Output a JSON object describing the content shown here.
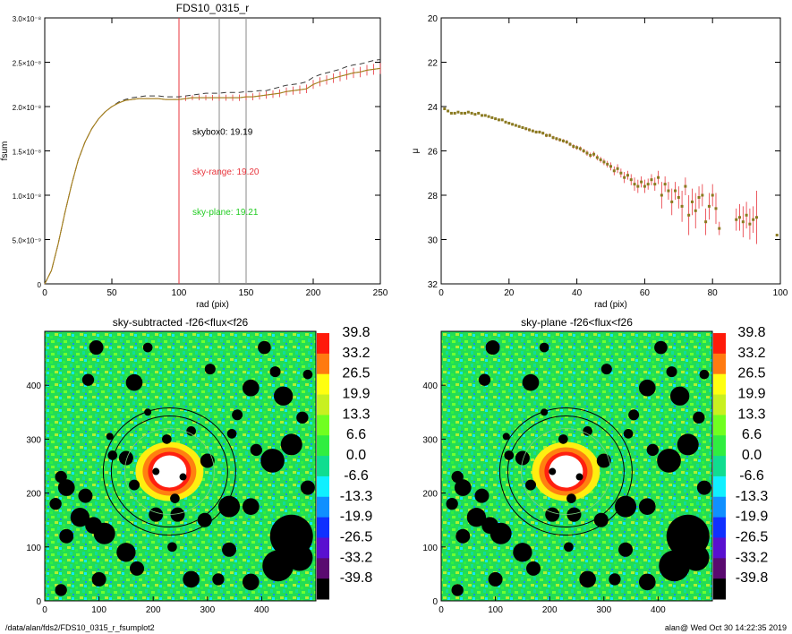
{
  "footer": {
    "path": "/data/alan/fds2/FDS10_0315_r_fsumplot2",
    "user_date": "alan@  Wed Oct 30 14:22:35 2019"
  },
  "chart_data": [
    {
      "id": "fsum",
      "type": "line",
      "title": "FDS10_0315_r",
      "xlabel": "rad (pix)",
      "ylabel": "fsum",
      "xlim": [
        0,
        250
      ],
      "ylim": [
        0,
        3e-08
      ],
      "x_ticks": [
        0,
        50,
        100,
        150,
        200,
        250
      ],
      "x_tick_labels": [
        "0",
        "50",
        "100",
        "150",
        "200",
        "250"
      ],
      "y_ticks": [
        0,
        5e-09,
        1e-08,
        1.5e-08,
        2e-08,
        2.5e-08,
        3e-08
      ],
      "y_tick_labels": [
        "0",
        "5.0×10⁻⁹",
        "1.0×10⁻⁸",
        "1.5×10⁻⁸",
        "2.0×10⁻⁸",
        "2.5×10⁻⁸",
        "3.0×10⁻⁸"
      ],
      "vlines": [
        {
          "x": 100,
          "color": "#e8343c"
        },
        {
          "x": 130,
          "color": "#888888"
        },
        {
          "x": 150,
          "color": "#888888"
        }
      ],
      "series": [
        {
          "color": "#3a3a3a",
          "dash": true,
          "x": [
            0,
            5,
            10,
            15,
            20,
            25,
            30,
            35,
            40,
            45,
            50,
            55,
            60,
            65,
            70,
            75,
            80,
            85,
            90,
            95,
            100,
            105,
            110,
            115,
            120,
            125,
            130,
            135,
            140,
            145,
            150,
            155,
            160,
            165,
            170,
            175,
            180,
            185,
            190,
            195,
            200,
            205,
            210,
            215,
            220,
            225,
            230,
            235,
            240,
            245,
            250
          ],
          "y": [
            0,
            1.5e-09,
            4.5e-09,
            8e-09,
            1.12e-08,
            1.4e-08,
            1.6e-08,
            1.75e-08,
            1.86e-08,
            1.94e-08,
            2e-08,
            2.05e-08,
            2.08e-08,
            2.1e-08,
            2.11e-08,
            2.12e-08,
            2.12e-08,
            2.12e-08,
            2.11e-08,
            2.11e-08,
            2.11e-08,
            2.12e-08,
            2.13e-08,
            2.14e-08,
            2.15e-08,
            2.15e-08,
            2.15e-08,
            2.16e-08,
            2.16e-08,
            2.16e-08,
            2.17e-08,
            2.17e-08,
            2.18e-08,
            2.18e-08,
            2.2e-08,
            2.22e-08,
            2.24e-08,
            2.25e-08,
            2.26e-08,
            2.28e-08,
            2.33e-08,
            2.36e-08,
            2.38e-08,
            2.4e-08,
            2.42e-08,
            2.45e-08,
            2.47e-08,
            2.48e-08,
            2.5e-08,
            2.52e-08,
            2.53e-08
          ]
        },
        {
          "color": "#e8343c",
          "errorbars": true,
          "x": [
            0,
            5,
            10,
            15,
            20,
            25,
            30,
            35,
            40,
            45,
            50,
            55,
            60,
            65,
            70,
            75,
            80,
            85,
            90,
            95,
            100,
            105,
            110,
            115,
            120,
            125,
            130,
            135,
            140,
            145,
            150,
            155,
            160,
            165,
            170,
            175,
            180,
            185,
            190,
            195,
            200,
            205,
            210,
            215,
            220,
            225,
            230,
            235,
            240,
            245,
            250
          ],
          "y": [
            0,
            1.5e-09,
            4.5e-09,
            8e-09,
            1.12e-08,
            1.4e-08,
            1.6e-08,
            1.75e-08,
            1.86e-08,
            1.94e-08,
            2e-08,
            2.04e-08,
            2.07e-08,
            2.08e-08,
            2.09e-08,
            2.09e-08,
            2.09e-08,
            2.09e-08,
            2.08e-08,
            2.08e-08,
            2.08e-08,
            2.09e-08,
            2.1e-08,
            2.1e-08,
            2.1e-08,
            2.1e-08,
            2.1e-08,
            2.1e-08,
            2.1e-08,
            2.1e-08,
            2.11e-08,
            2.11e-08,
            2.12e-08,
            2.13e-08,
            2.14e-08,
            2.15e-08,
            2.17e-08,
            2.18e-08,
            2.19e-08,
            2.2e-08,
            2.25e-08,
            2.28e-08,
            2.3e-08,
            2.32e-08,
            2.34e-08,
            2.36e-08,
            2.38e-08,
            2.39e-08,
            2.41e-08,
            2.42e-08,
            2.43e-08
          ]
        },
        {
          "color": "#9a8a1a",
          "x": [
            0,
            5,
            10,
            15,
            20,
            25,
            30,
            35,
            40,
            45,
            50,
            55,
            60,
            65,
            70,
            75,
            80,
            85,
            90,
            95,
            100,
            105,
            110,
            115,
            120,
            125,
            130,
            135,
            140,
            145,
            150,
            155,
            160,
            165,
            170,
            175,
            180,
            185,
            190,
            195,
            200,
            205,
            210,
            215,
            220,
            225,
            230,
            235,
            240,
            245,
            250
          ],
          "y": [
            0,
            1.5e-09,
            4.5e-09,
            8e-09,
            1.12e-08,
            1.4e-08,
            1.6e-08,
            1.75e-08,
            1.86e-08,
            1.94e-08,
            2e-08,
            2.04e-08,
            2.07e-08,
            2.08e-08,
            2.09e-08,
            2.09e-08,
            2.09e-08,
            2.09e-08,
            2.08e-08,
            2.08e-08,
            2.08e-08,
            2.09e-08,
            2.1e-08,
            2.1e-08,
            2.1e-08,
            2.1e-08,
            2.1e-08,
            2.1e-08,
            2.1e-08,
            2.1e-08,
            2.11e-08,
            2.11e-08,
            2.12e-08,
            2.13e-08,
            2.14e-08,
            2.15e-08,
            2.17e-08,
            2.18e-08,
            2.19e-08,
            2.2e-08,
            2.25e-08,
            2.28e-08,
            2.3e-08,
            2.32e-08,
            2.34e-08,
            2.36e-08,
            2.38e-08,
            2.39e-08,
            2.41e-08,
            2.42e-08,
            2.43e-08
          ]
        }
      ],
      "annotations": [
        {
          "text": "skybox0: 19.19",
          "x": 110,
          "y": 1.68e-08,
          "color": "#000000"
        },
        {
          "text": "sky-range: 19.20",
          "x": 110,
          "y": 1.23e-08,
          "color": "#e8343c"
        },
        {
          "text": "sky-plane: 19.21",
          "x": 110,
          "y": 7.8e-09,
          "color": "#22cc22"
        }
      ]
    },
    {
      "id": "mu",
      "type": "scatter",
      "title": "",
      "xlabel": "rad (pix)",
      "ylabel": "μ",
      "xlim": [
        0,
        100
      ],
      "ylim": [
        32,
        20
      ],
      "x_ticks": [
        0,
        20,
        40,
        60,
        80,
        100
      ],
      "x_tick_labels": [
        "0",
        "20",
        "40",
        "60",
        "80",
        "100"
      ],
      "y_ticks": [
        20,
        22,
        24,
        26,
        28,
        30,
        32
      ],
      "y_tick_labels": [
        "20",
        "22",
        "24",
        "26",
        "28",
        "30",
        "32"
      ],
      "color": "#8a7a20",
      "errcolor": "#e8343c",
      "points": [
        [
          1,
          24.1,
          0.05
        ],
        [
          2,
          24.2,
          0.05
        ],
        [
          3,
          24.3,
          0.05
        ],
        [
          4,
          24.3,
          0.05
        ],
        [
          5,
          24.25,
          0.05
        ],
        [
          6,
          24.3,
          0.05
        ],
        [
          7,
          24.3,
          0.05
        ],
        [
          8,
          24.25,
          0.05
        ],
        [
          9,
          24.3,
          0.05
        ],
        [
          10,
          24.35,
          0.05
        ],
        [
          11,
          24.3,
          0.05
        ],
        [
          12,
          24.4,
          0.05
        ],
        [
          13,
          24.4,
          0.05
        ],
        [
          14,
          24.45,
          0.05
        ],
        [
          15,
          24.5,
          0.05
        ],
        [
          16,
          24.55,
          0.05
        ],
        [
          17,
          24.6,
          0.06
        ],
        [
          18,
          24.6,
          0.06
        ],
        [
          19,
          24.7,
          0.06
        ],
        [
          20,
          24.75,
          0.06
        ],
        [
          21,
          24.8,
          0.06
        ],
        [
          22,
          24.85,
          0.06
        ],
        [
          23,
          24.9,
          0.06
        ],
        [
          24,
          24.95,
          0.06
        ],
        [
          25,
          25.0,
          0.07
        ],
        [
          26,
          25.05,
          0.07
        ],
        [
          27,
          25.1,
          0.07
        ],
        [
          28,
          25.15,
          0.07
        ],
        [
          29,
          25.15,
          0.07
        ],
        [
          30,
          25.2,
          0.07
        ],
        [
          31,
          25.3,
          0.08
        ],
        [
          32,
          25.3,
          0.08
        ],
        [
          33,
          25.4,
          0.08
        ],
        [
          34,
          25.45,
          0.08
        ],
        [
          35,
          25.5,
          0.08
        ],
        [
          36,
          25.55,
          0.08
        ],
        [
          37,
          25.6,
          0.09
        ],
        [
          38,
          25.7,
          0.09
        ],
        [
          39,
          25.8,
          0.1
        ],
        [
          40,
          25.85,
          0.1
        ],
        [
          41,
          25.9,
          0.1
        ],
        [
          42,
          26.0,
          0.1
        ],
        [
          43,
          26.1,
          0.12
        ],
        [
          44,
          26.2,
          0.12
        ],
        [
          45,
          26.15,
          0.12
        ],
        [
          46,
          26.3,
          0.13
        ],
        [
          47,
          26.4,
          0.13
        ],
        [
          48,
          26.5,
          0.14
        ],
        [
          49,
          26.6,
          0.15
        ],
        [
          50,
          26.7,
          0.18
        ],
        [
          51,
          26.9,
          0.2
        ],
        [
          52,
          26.8,
          0.2
        ],
        [
          53,
          27.0,
          0.2
        ],
        [
          54,
          27.2,
          0.25
        ],
        [
          55,
          27.1,
          0.2
        ],
        [
          56,
          27.3,
          0.25
        ],
        [
          57,
          27.5,
          0.3
        ],
        [
          58,
          27.6,
          0.3
        ],
        [
          59,
          27.4,
          0.25
        ],
        [
          60,
          27.6,
          0.3
        ],
        [
          61,
          27.5,
          0.25
        ],
        [
          62,
          27.3,
          0.25
        ],
        [
          63,
          27.5,
          0.3
        ],
        [
          64,
          27.2,
          0.3
        ],
        [
          65,
          28.0,
          0.6
        ],
        [
          66,
          27.5,
          0.35
        ],
        [
          67,
          27.8,
          0.4
        ],
        [
          68,
          28.3,
          0.6
        ],
        [
          69,
          27.8,
          0.4
        ],
        [
          70,
          28.1,
          0.5
        ],
        [
          71,
          28.5,
          0.7
        ],
        [
          72,
          27.6,
          0.4
        ],
        [
          73,
          28.9,
          0.9
        ],
        [
          74,
          28.3,
          0.6
        ],
        [
          75,
          28.7,
          0.8
        ],
        [
          76,
          28.1,
          0.5
        ],
        [
          77,
          28.0,
          0.5
        ],
        [
          78,
          29.2,
          0.6
        ],
        [
          79,
          28.5,
          0.6
        ],
        [
          80,
          28.0,
          0.5
        ],
        [
          81,
          28.6,
          0.7
        ],
        [
          82,
          29.5,
          0.3
        ],
        [
          87,
          29.1,
          0.5
        ],
        [
          88,
          29.0,
          0.6
        ],
        [
          89,
          29.2,
          0.7
        ],
        [
          90,
          28.9,
          0.6
        ],
        [
          91,
          29.3,
          0.7
        ],
        [
          92,
          29.1,
          0.6
        ],
        [
          93,
          29.0,
          1.2
        ],
        [
          99,
          29.8,
          0.05
        ]
      ]
    },
    {
      "id": "sky-subtracted",
      "type": "heatmap",
      "title": "sky-subtracted -f26<flux<f26",
      "xlim": [
        0,
        500
      ],
      "ylim": [
        0,
        500
      ],
      "x_ticks": [
        0,
        100,
        200,
        300,
        400
      ],
      "x_tick_labels": [
        "0",
        "100",
        "200",
        "300",
        "400"
      ],
      "y_ticks": [
        0,
        100,
        200,
        300,
        400
      ],
      "y_tick_labels": [
        "0",
        "100",
        "200",
        "300",
        "400"
      ],
      "colorbar": {
        "labels": [
          "39.8",
          "33.2",
          "26.5",
          "19.9",
          "13.3",
          "6.6",
          "0.0",
          "-6.6",
          "-13.3",
          "-19.9",
          "-26.5",
          "-33.2",
          "-39.8"
        ],
        "colors": [
          "#ff1a0a",
          "#ff7a10",
          "#ffff10",
          "#c8f020",
          "#70ff20",
          "#30ee40",
          "#10dd90",
          "#10f0ff",
          "#1090ff",
          "#1030ff",
          "#5a10d0",
          "#5a0a70",
          "#000000"
        ]
      }
    },
    {
      "id": "sky-plane",
      "type": "heatmap",
      "title": "sky-plane -f26<flux<f26",
      "xlim": [
        0,
        500
      ],
      "ylim": [
        0,
        500
      ],
      "x_ticks": [
        0,
        100,
        200,
        300,
        400
      ],
      "x_tick_labels": [
        "0",
        "100",
        "200",
        "300",
        "400"
      ],
      "y_ticks": [
        0,
        100,
        200,
        300,
        400
      ],
      "y_tick_labels": [
        "0",
        "100",
        "200",
        "300",
        "400"
      ],
      "colorbar": {
        "labels": [
          "39.8",
          "33.2",
          "26.5",
          "19.9",
          "13.3",
          "6.6",
          "0.0",
          "-6.6",
          "-13.3",
          "-19.9",
          "-26.5",
          "-33.2",
          "-39.8"
        ],
        "colors": [
          "#ff1a0a",
          "#ff7a10",
          "#ffff10",
          "#c8f020",
          "#70ff20",
          "#30ee40",
          "#10dd90",
          "#10f0ff",
          "#1090ff",
          "#1030ff",
          "#5a10d0",
          "#5a0a70",
          "#000000"
        ]
      }
    }
  ]
}
